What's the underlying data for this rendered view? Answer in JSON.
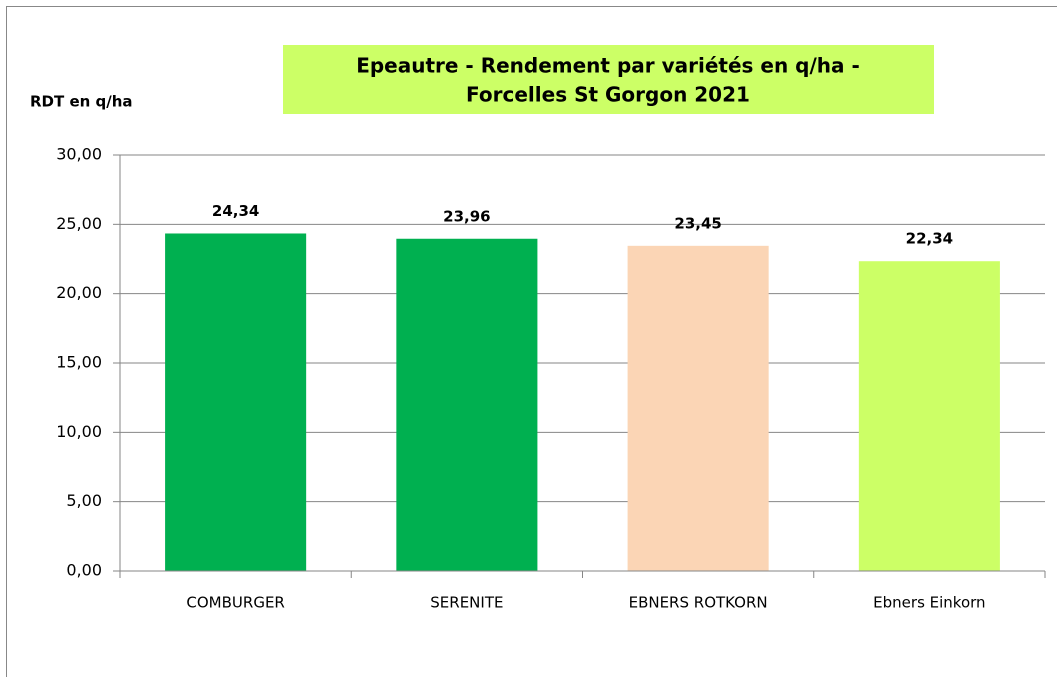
{
  "chart_data": {
    "type": "bar",
    "title": [
      "Epeautre - Rendement par variétés en q/ha  -",
      "Forcelles St Gorgon 2021"
    ],
    "y_label": "RDT en q/ha",
    "categories": [
      "COMBURGER",
      "SERENITE",
      "EBNERS ROTKORN",
      "Ebners Einkorn"
    ],
    "values": [
      24.34,
      23.96,
      23.45,
      22.34
    ],
    "value_labels": [
      "24,34",
      "23,96",
      "23,45",
      "22,34"
    ],
    "colors": [
      "#00b050",
      "#00b050",
      "#fbd5b5",
      "#ccff66"
    ],
    "ylim": [
      0,
      30
    ],
    "yticks": [
      {
        "value": 0,
        "label": "0,00"
      },
      {
        "value": 5,
        "label": "5,00"
      },
      {
        "value": 10,
        "label": "10,00"
      },
      {
        "value": 15,
        "label": "15,00"
      },
      {
        "value": 20,
        "label": "20,00"
      },
      {
        "value": 25,
        "label": "25,00"
      },
      {
        "value": 30,
        "label": "30,00"
      }
    ],
    "grid": true
  }
}
